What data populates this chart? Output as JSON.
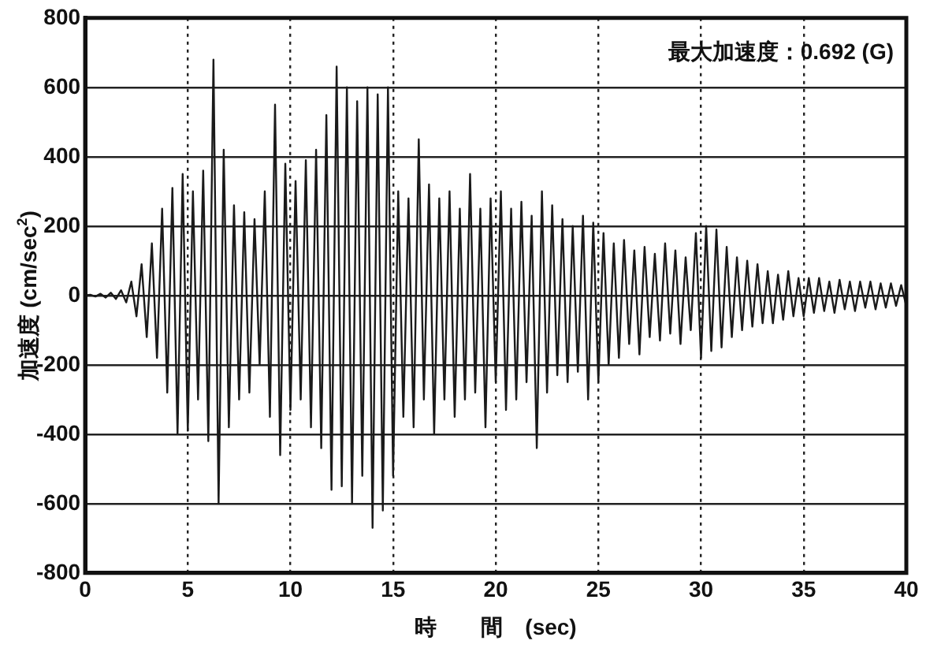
{
  "chart_data": {
    "type": "line",
    "xlabel": "時　　間　(sec)",
    "ylabel": "加速度 (cm/sec$^{2}$)",
    "annotations": [
      "最大加速度：0.692 (G)"
    ],
    "xlim": [
      0,
      40
    ],
    "xticks": [
      0,
      5,
      10,
      15,
      20,
      25,
      30,
      35,
      40
    ],
    "ylim": [
      -800,
      800
    ],
    "yticks": [
      -800,
      -600,
      -400,
      -200,
      0,
      200,
      400,
      600,
      800
    ],
    "grid": true,
    "x": [
      0,
      0.25,
      0.5,
      0.75,
      1,
      1.25,
      1.5,
      1.75,
      2,
      2.25,
      2.5,
      2.75,
      3,
      3.25,
      3.5,
      3.75,
      4,
      4.25,
      4.5,
      4.75,
      5,
      5.25,
      5.5,
      5.75,
      6,
      6.25,
      6.5,
      6.75,
      7,
      7.25,
      7.5,
      7.75,
      8,
      8.25,
      8.5,
      8.75,
      9,
      9.25,
      9.5,
      9.75,
      10,
      10.25,
      10.5,
      10.75,
      11,
      11.25,
      11.5,
      11.75,
      12,
      12.25,
      12.5,
      12.75,
      13,
      13.25,
      13.5,
      13.75,
      14,
      14.25,
      14.5,
      14.75,
      15,
      15.25,
      15.5,
      15.75,
      16,
      16.25,
      16.5,
      16.75,
      17,
      17.25,
      17.5,
      17.75,
      18,
      18.25,
      18.5,
      18.75,
      19,
      19.25,
      19.5,
      19.75,
      20,
      20.25,
      20.5,
      20.75,
      21,
      21.25,
      21.5,
      21.75,
      22,
      22.25,
      22.5,
      22.75,
      23,
      23.25,
      23.5,
      23.75,
      24,
      24.25,
      24.5,
      24.75,
      25,
      25.25,
      25.5,
      25.75,
      26,
      26.25,
      26.5,
      26.75,
      27,
      27.25,
      27.5,
      27.75,
      28,
      28.25,
      28.5,
      28.75,
      29,
      29.25,
      29.5,
      29.75,
      30,
      30.25,
      30.5,
      30.75,
      31,
      31.25,
      31.5,
      31.75,
      32,
      32.25,
      32.5,
      32.75,
      33,
      33.25,
      33.5,
      33.75,
      34,
      34.25,
      34.5,
      34.75,
      35,
      35.25,
      35.5,
      35.75,
      36,
      36.25,
      36.5,
      36.75,
      37,
      37.25,
      37.5,
      37.75,
      38,
      38.25,
      38.5,
      38.75,
      39,
      39.25,
      39.5,
      39.75,
      40
    ],
    "series": [
      {
        "color": "#1a1a1a",
        "values": [
          0,
          2,
          -3,
          5,
          -6,
          8,
          -10,
          15,
          -20,
          40,
          -60,
          90,
          -120,
          150,
          -180,
          250,
          -280,
          310,
          -400,
          350,
          -390,
          300,
          -300,
          360,
          -420,
          680,
          -600,
          420,
          -380,
          260,
          -300,
          240,
          -280,
          220,
          -200,
          300,
          -350,
          550,
          -460,
          380,
          -330,
          330,
          -300,
          390,
          -380,
          420,
          -440,
          520,
          -560,
          660,
          -550,
          600,
          -600,
          560,
          -520,
          600,
          -670,
          580,
          -620,
          600,
          -520,
          300,
          -350,
          280,
          -380,
          450,
          -300,
          320,
          -400,
          280,
          -300,
          300,
          -350,
          250,
          -300,
          350,
          -280,
          250,
          -380,
          280,
          -250,
          300,
          -330,
          250,
          -300,
          270,
          -250,
          230,
          -440,
          300,
          -280,
          260,
          -230,
          220,
          -250,
          200,
          -220,
          230,
          -300,
          210,
          -250,
          180,
          -200,
          150,
          -180,
          160,
          -140,
          130,
          -170,
          140,
          -120,
          120,
          -130,
          150,
          -110,
          130,
          -140,
          110,
          -100,
          180,
          -180,
          200,
          -160,
          190,
          -150,
          140,
          -120,
          110,
          -100,
          100,
          -90,
          90,
          -80,
          70,
          -80,
          60,
          -70,
          70,
          -60,
          50,
          -60,
          50,
          -50,
          50,
          -45,
          40,
          -50,
          45,
          -40,
          40,
          -45,
          40,
          -35,
          40,
          -40,
          35,
          -35,
          35,
          -30,
          30,
          -30
        ]
      }
    ]
  }
}
